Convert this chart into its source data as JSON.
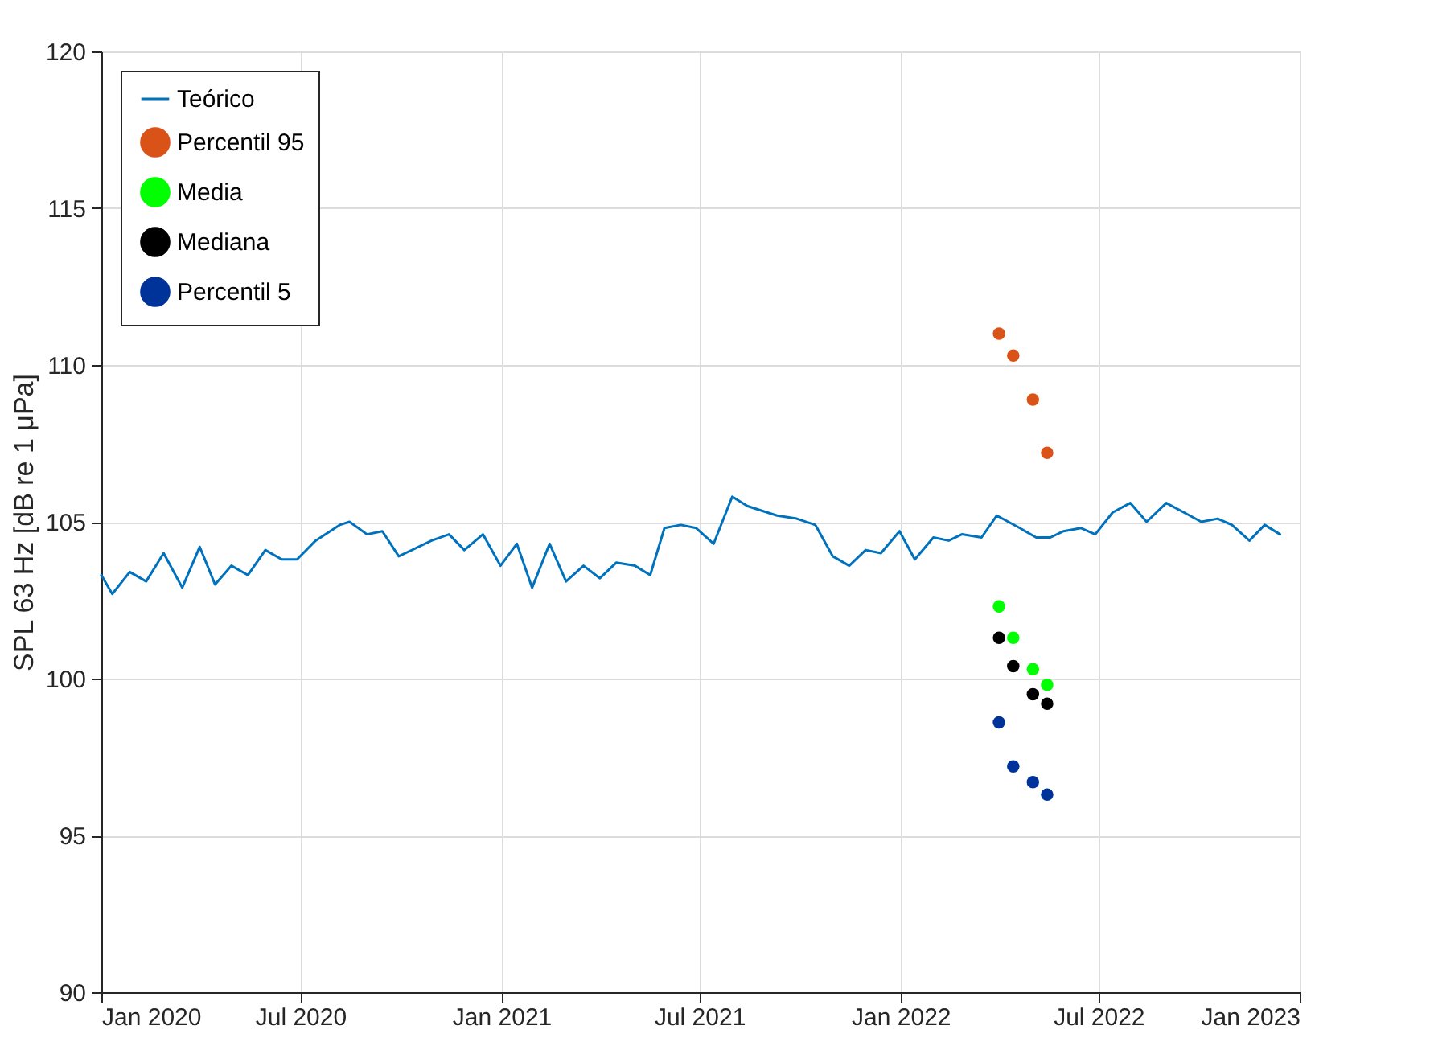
{
  "chart_data": {
    "type": "line",
    "ylabel": "SPL 63 Hz [dB re 1 μPa]",
    "xlim": [
      "2020-01-01",
      "2023-01-01"
    ],
    "xticks": [
      {
        "value": "2020-01-01",
        "label": "Jan 2020"
      },
      {
        "value": "2020-07-01",
        "label": "Jul 2020"
      },
      {
        "value": "2021-01-01",
        "label": "Jan 2021"
      },
      {
        "value": "2021-07-01",
        "label": "Jul 2021"
      },
      {
        "value": "2022-01-01",
        "label": "Jan 2022"
      },
      {
        "value": "2022-07-01",
        "label": "Jul 2022"
      },
      {
        "value": "2023-01-01",
        "label": "Jan 2023"
      }
    ],
    "ylim": [
      90,
      120
    ],
    "yticks": [
      90,
      95,
      100,
      105,
      110,
      115,
      120
    ],
    "grid": true,
    "legend": "top left",
    "series": [
      {
        "name": "Teórico",
        "color": "#0072bd",
        "marker": "none",
        "line_style": "solid",
        "x": [
          "2020-01-01",
          "2020-01-11",
          "2020-01-27",
          "2020-02-11",
          "2020-02-27",
          "2020-03-15",
          "2020-03-31",
          "2020-04-14",
          "2020-04-29",
          "2020-05-14",
          "2020-05-30",
          "2020-06-14",
          "2020-06-28",
          "2020-07-15",
          "2020-08-06",
          "2020-08-15",
          "2020-08-31",
          "2020-09-14",
          "2020-09-29",
          "2020-10-29",
          "2020-11-14",
          "2020-11-28",
          "2020-12-15",
          "2020-12-31",
          "2021-01-15",
          "2021-01-29",
          "2021-02-14",
          "2021-03-01",
          "2021-03-17",
          "2021-04-01",
          "2021-04-16",
          "2021-05-03",
          "2021-05-17",
          "2021-05-30",
          "2021-06-14",
          "2021-06-28",
          "2021-07-14",
          "2021-07-31",
          "2021-08-14",
          "2021-09-10",
          "2021-09-28",
          "2021-10-15",
          "2021-10-31",
          "2021-11-15",
          "2021-11-30",
          "2021-12-14",
          "2021-12-31",
          "2022-01-14",
          "2022-01-31",
          "2022-02-14",
          "2022-02-26",
          "2022-03-16",
          "2022-03-30",
          "2022-04-20",
          "2022-05-05",
          "2022-05-18",
          "2022-05-30",
          "2022-06-15",
          "2022-06-28",
          "2022-07-14",
          "2022-07-30",
          "2022-08-14",
          "2022-09-01",
          "2022-09-17",
          "2022-10-03",
          "2022-10-18",
          "2022-10-31",
          "2022-11-16",
          "2022-11-30",
          "2022-12-14"
        ],
        "values": [
          103.3,
          102.7,
          103.4,
          103.1,
          104.0,
          102.9,
          104.2,
          103.0,
          103.6,
          103.3,
          104.1,
          103.8,
          103.8,
          104.4,
          104.9,
          105.0,
          104.6,
          104.7,
          103.9,
          104.4,
          104.6,
          104.1,
          104.6,
          103.6,
          104.3,
          102.9,
          104.3,
          103.1,
          103.6,
          103.2,
          103.7,
          103.6,
          103.3,
          104.8,
          104.9,
          104.8,
          104.3,
          105.8,
          105.5,
          105.2,
          105.1,
          104.9,
          103.9,
          103.6,
          104.1,
          104.0,
          104.7,
          103.8,
          104.5,
          104.4,
          104.6,
          104.5,
          105.2,
          104.8,
          104.5,
          104.5,
          104.7,
          104.8,
          104.6,
          105.3,
          105.6,
          105.0,
          105.6,
          105.3,
          105.0,
          105.1,
          104.9,
          104.4,
          104.9,
          104.6
        ]
      },
      {
        "name": "Percentil 95",
        "type": "scatter",
        "color": "#d95319",
        "marker": "circle",
        "x": [
          "2022-04-01",
          "2022-04-14",
          "2022-05-02",
          "2022-05-15"
        ],
        "values": [
          111.0,
          110.3,
          108.9,
          107.2
        ]
      },
      {
        "name": "Media",
        "type": "scatter",
        "color": "#00ff00",
        "marker": "circle",
        "x": [
          "2022-04-01",
          "2022-04-14",
          "2022-05-02",
          "2022-05-15"
        ],
        "values": [
          102.3,
          101.3,
          100.3,
          99.8
        ]
      },
      {
        "name": "Mediana",
        "type": "scatter",
        "color": "#000000",
        "marker": "circle",
        "x": [
          "2022-04-01",
          "2022-04-14",
          "2022-05-02",
          "2022-05-15"
        ],
        "values": [
          101.3,
          100.4,
          99.5,
          99.2
        ]
      },
      {
        "name": "Percentil 5",
        "type": "scatter",
        "color": "#003399",
        "marker": "circle",
        "x": [
          "2022-04-01",
          "2022-04-14",
          "2022-05-02",
          "2022-05-15"
        ],
        "values": [
          98.6,
          97.2,
          96.7,
          96.3
        ]
      }
    ]
  }
}
